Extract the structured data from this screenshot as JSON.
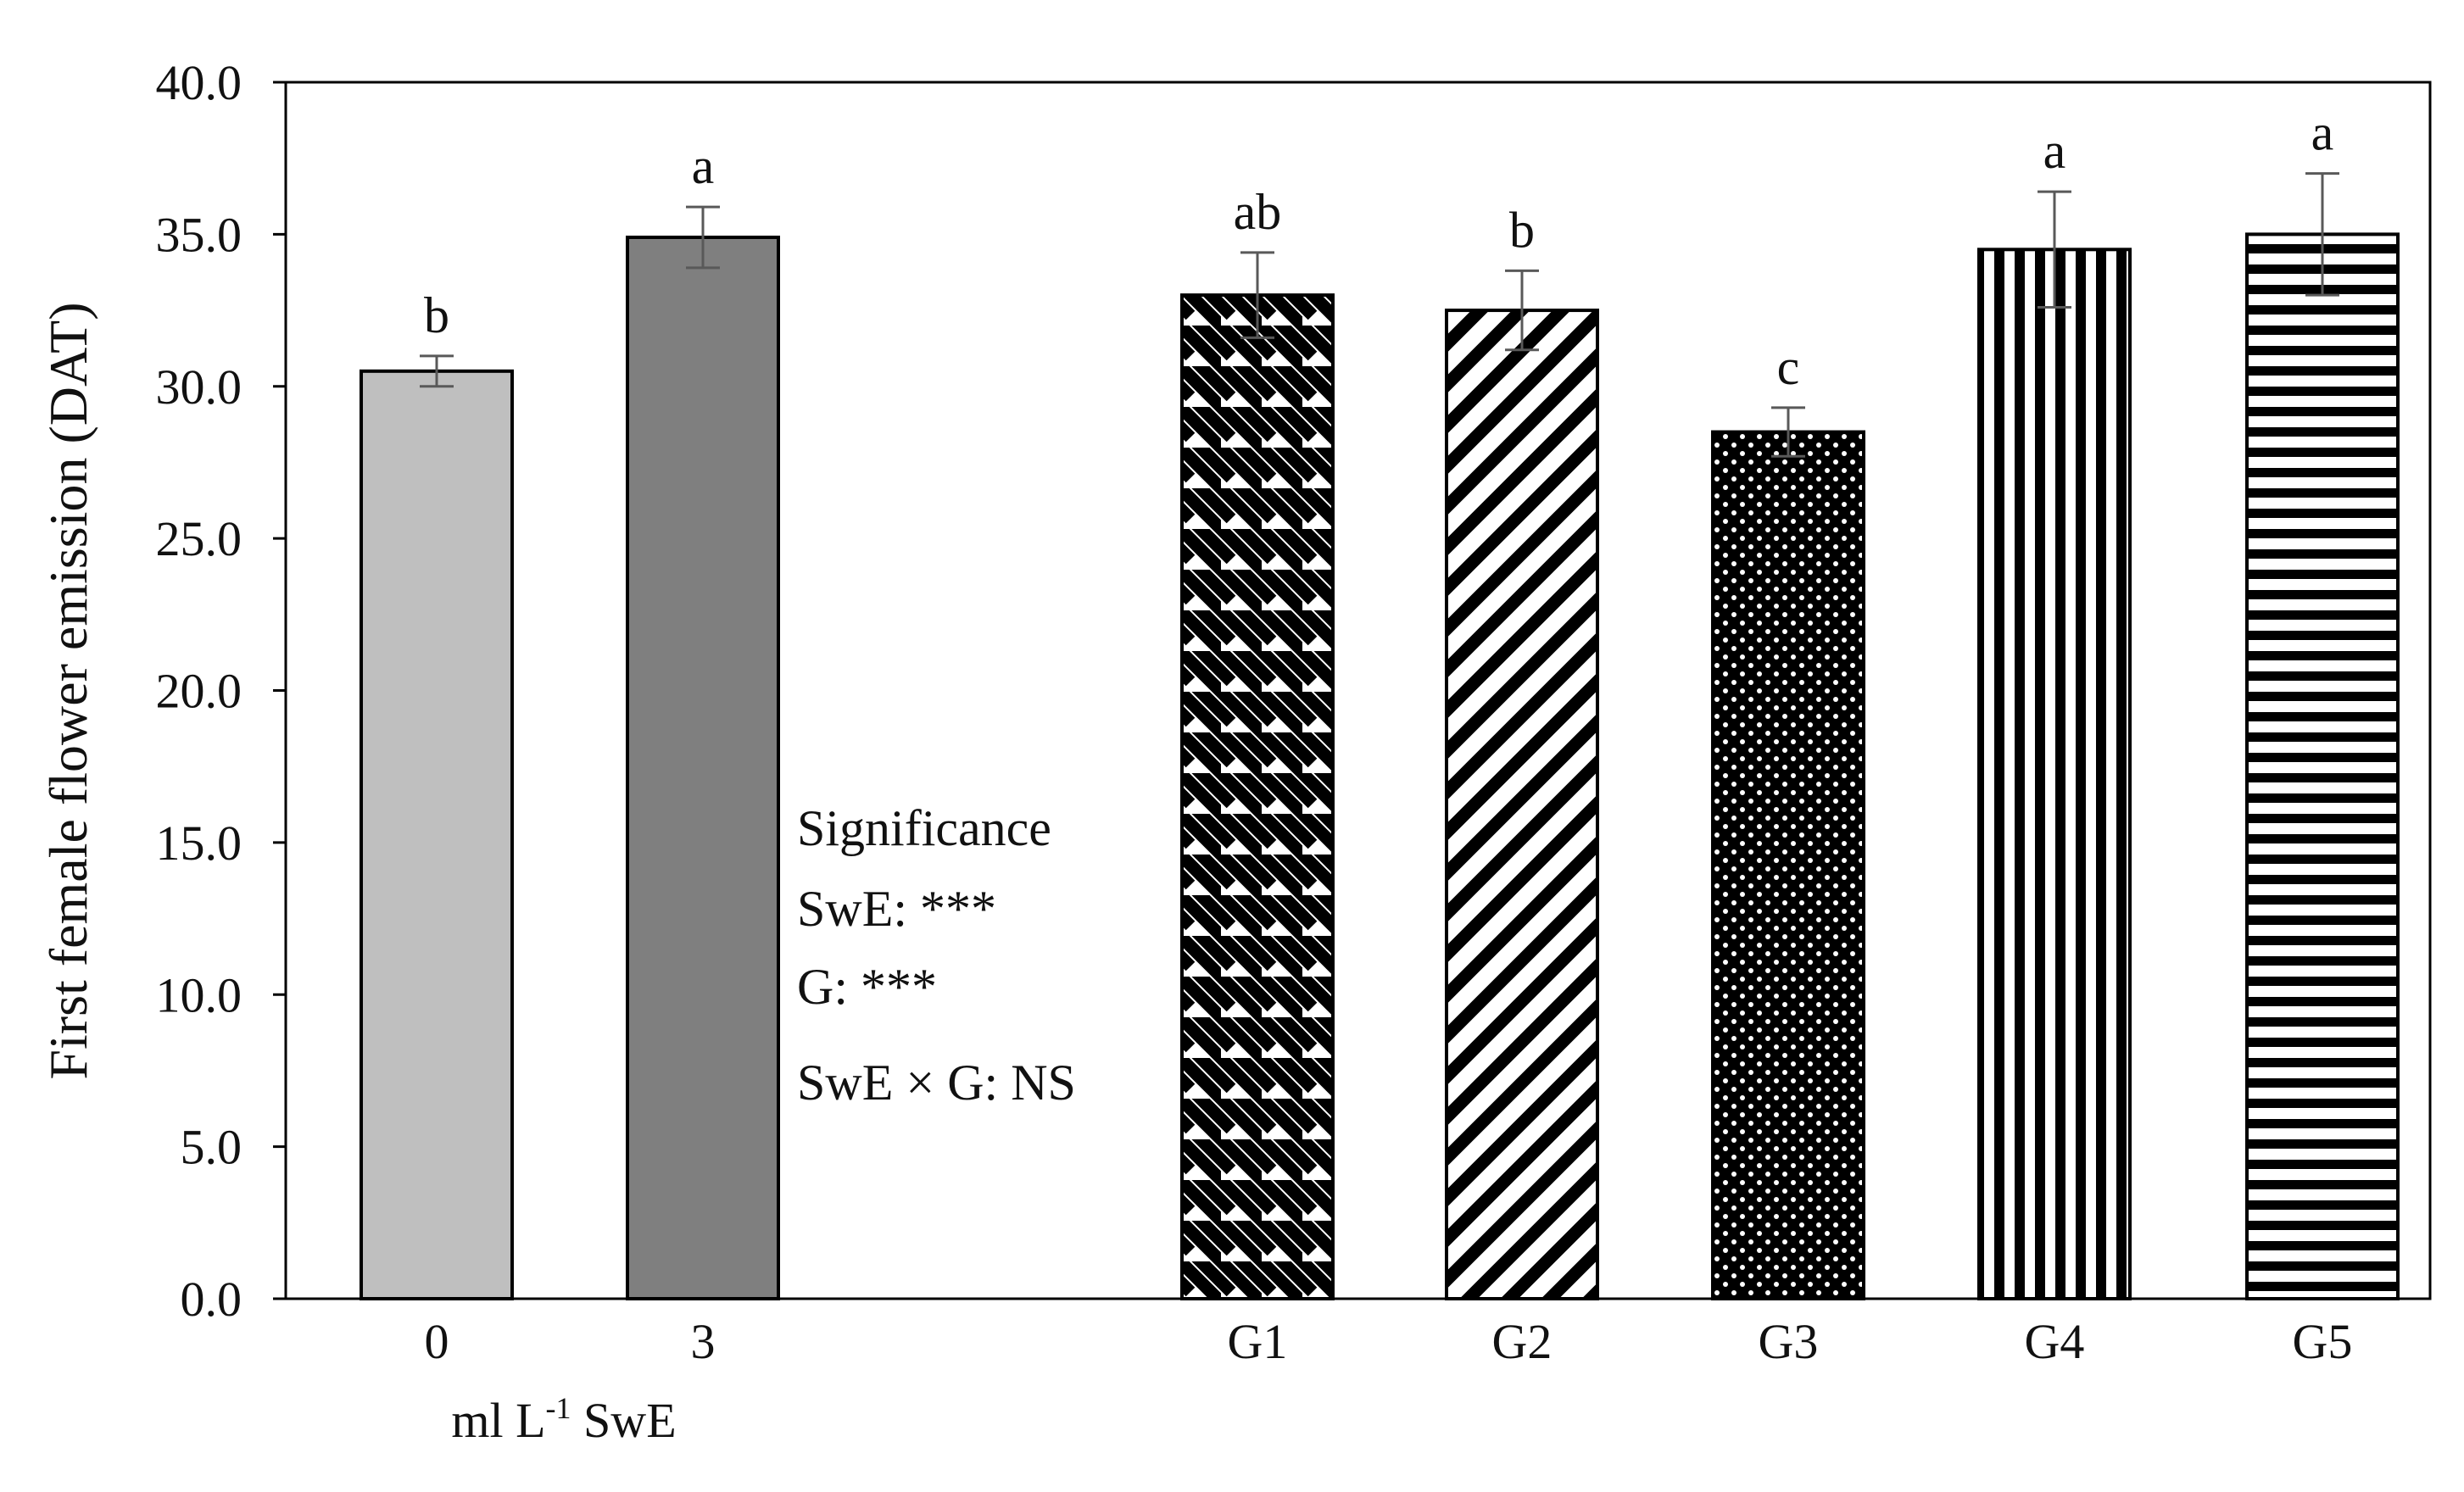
{
  "chart_data": {
    "type": "bar",
    "ylabel": "First female flower emission (DAT)",
    "ylim": [
      0,
      40
    ],
    "yticks": [
      0,
      5,
      10,
      15,
      20,
      25,
      30,
      35,
      40
    ],
    "ytick_labels": [
      "0.0",
      "5.0",
      "10.0",
      "15.0",
      "20.0",
      "25.0",
      "30.0",
      "35.0",
      "40.0"
    ],
    "grid": false,
    "categories": [
      "0",
      "3",
      "G1",
      "G2",
      "G3",
      "G4",
      "G5"
    ],
    "values": [
      30.5,
      34.9,
      33.0,
      32.5,
      28.5,
      34.5,
      35.0
    ],
    "errors": [
      0.5,
      1.0,
      1.4,
      1.3,
      0.8,
      1.9,
      2.0
    ],
    "significance_letters": [
      "b",
      "a",
      "ab",
      "b",
      "c",
      "a",
      "a"
    ],
    "fills": [
      "solid-light-gray",
      "solid-dark-gray",
      "diagonal-down",
      "diagonal-up",
      "dotted",
      "vertical-lines",
      "horizontal-lines"
    ],
    "colors": {
      "light_gray": "#bfbfbf",
      "dark_gray": "#7f7f7f",
      "pattern_dark": "#000000",
      "pattern_light": "#ffffff",
      "error_bar": "#595959"
    },
    "group_label": {
      "prefix": "ml L",
      "superscript": "-1",
      "suffix": " SwE"
    },
    "annotation": {
      "lines": [
        "Significance",
        "SwE: ***",
        "G: ***",
        "SwE × G: NS"
      ]
    }
  }
}
